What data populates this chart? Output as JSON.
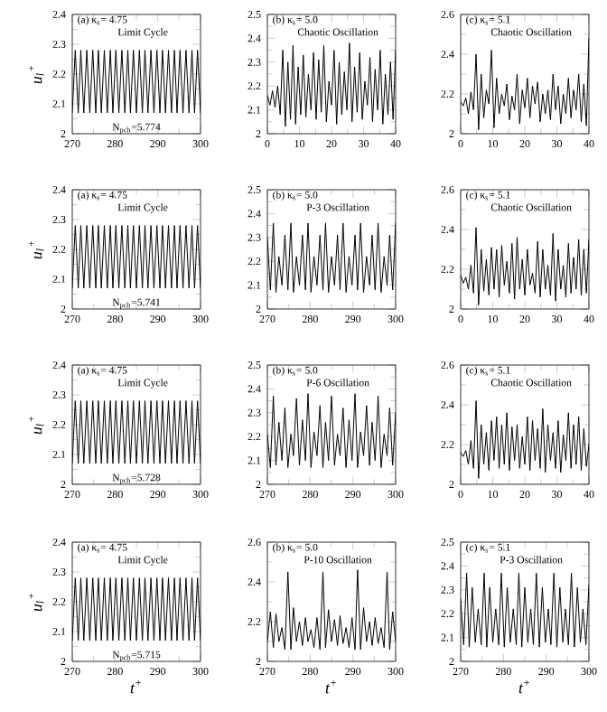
{
  "chart_data": [
    {
      "type": "line",
      "ylabel": "u$_{l}$$^{+}$",
      "annotations": [
        "(a) κ$_{s}$= 4.75",
        "Limit Cycle",
        "N$_{pch}$=5.774"
      ],
      "xlim": [
        270,
        300
      ],
      "xticks": [
        270,
        280,
        290,
        300
      ],
      "ylim": [
        2,
        2.4
      ],
      "yticks": [
        2,
        2.1,
        2.2,
        2.3,
        2.4
      ],
      "x": [
        270.0,
        270.7,
        271.4,
        272.0,
        272.7,
        273.4,
        274.1,
        274.8,
        275.5,
        276.1,
        276.8,
        277.5,
        278.2,
        278.9,
        279.5,
        280.2,
        280.9,
        281.6,
        282.3,
        283.0,
        283.6,
        284.3,
        285.0,
        285.7,
        286.4,
        287.0,
        287.7,
        288.4,
        289.1,
        289.8,
        290.5,
        291.1,
        291.8,
        292.5,
        293.2,
        293.9,
        294.5,
        295.2,
        295.9,
        296.6,
        297.3,
        298.0,
        298.6,
        299.3,
        300.0
      ],
      "series": [
        {
          "color": "#000000",
          "values": [
            2.07,
            2.28,
            2.07,
            2.28,
            2.07,
            2.28,
            2.07,
            2.28,
            2.07,
            2.28,
            2.07,
            2.28,
            2.07,
            2.28,
            2.07,
            2.28,
            2.07,
            2.28,
            2.07,
            2.28,
            2.07,
            2.28,
            2.07,
            2.28,
            2.07,
            2.28,
            2.07,
            2.28,
            2.07,
            2.28,
            2.07,
            2.28,
            2.07,
            2.28,
            2.07,
            2.28,
            2.07,
            2.28,
            2.07,
            2.28,
            2.07,
            2.28,
            2.07,
            2.28,
            2.07
          ]
        }
      ]
    },
    {
      "type": "line",
      "annotations": [
        "(b) κ$_{s}$= 5.0",
        "Chaotic Oscillation"
      ],
      "xlim": [
        0,
        40
      ],
      "xticks": [
        0,
        10,
        20,
        30,
        40
      ],
      "ylim": [
        2,
        2.5
      ],
      "yticks": [
        2,
        2.1,
        2.2,
        2.3,
        2.4,
        2.5
      ],
      "x": [
        0,
        0.8,
        1.6,
        2.4,
        3.2,
        4,
        4.8,
        5.6,
        6.4,
        7.2,
        8,
        8.8,
        9.6,
        10.4,
        11.2,
        12,
        12.8,
        13.6,
        14.4,
        15.2,
        16,
        16.8,
        17.6,
        18.4,
        19.2,
        20,
        20.8,
        21.6,
        22.4,
        23.2,
        24,
        24.8,
        25.6,
        26.4,
        27.2,
        28,
        28.8,
        29.6,
        30.4,
        31.2,
        32,
        32.8,
        33.6,
        34.4,
        35.2,
        36,
        36.8,
        37.6,
        38.4,
        39.2,
        40
      ],
      "series": [
        {
          "color": "#000000",
          "values": [
            2.16,
            2.12,
            2.18,
            2.11,
            2.2,
            2.08,
            2.35,
            2.03,
            2.3,
            2.06,
            2.37,
            2.04,
            2.28,
            2.08,
            2.33,
            2.07,
            2.25,
            2.1,
            2.34,
            2.06,
            2.31,
            2.09,
            2.37,
            2.05,
            2.22,
            2.12,
            2.35,
            2.04,
            2.3,
            2.08,
            2.26,
            2.1,
            2.38,
            2.05,
            2.28,
            2.09,
            2.34,
            2.06,
            2.22,
            2.12,
            2.32,
            2.05,
            2.27,
            2.1,
            2.35,
            2.04,
            2.25,
            2.08,
            2.3,
            2.06,
            2.35
          ]
        }
      ]
    },
    {
      "type": "line",
      "annotations": [
        "(c) κ$_{s}$= 5.1",
        "Chaotic Oscillation"
      ],
      "xlim": [
        0,
        40
      ],
      "xticks": [
        0,
        10,
        20,
        30,
        40
      ],
      "ylim": [
        2,
        2.6
      ],
      "yticks": [
        2,
        2.2,
        2.4,
        2.6
      ],
      "x": [
        0,
        0.8,
        1.6,
        2.4,
        3.2,
        4,
        4.8,
        5.6,
        6.4,
        7.2,
        8,
        8.8,
        9.6,
        10.4,
        11.2,
        12,
        12.8,
        13.6,
        14.4,
        15.2,
        16,
        16.8,
        17.6,
        18.4,
        19.2,
        20,
        20.8,
        21.6,
        22.4,
        23.2,
        24,
        24.8,
        25.6,
        26.4,
        27.2,
        28,
        28.8,
        29.6,
        30.4,
        31.2,
        32,
        32.8,
        33.6,
        34.4,
        35.2,
        36,
        36.8,
        37.6,
        38.4,
        39.2,
        40
      ],
      "series": [
        {
          "color": "#000000",
          "values": [
            2.16,
            2.14,
            2.18,
            2.1,
            2.21,
            2.12,
            2.4,
            2.02,
            2.3,
            2.08,
            2.22,
            2.15,
            2.42,
            2.03,
            2.28,
            2.1,
            2.2,
            2.14,
            2.25,
            2.07,
            2.19,
            2.12,
            2.3,
            2.05,
            2.22,
            2.13,
            2.28,
            2.08,
            2.24,
            2.15,
            2.26,
            2.06,
            2.2,
            2.1,
            2.22,
            2.07,
            2.3,
            2.12,
            2.24,
            2.05,
            2.2,
            2.1,
            2.28,
            2.08,
            2.22,
            2.12,
            2.3,
            2.06,
            2.25,
            2.04,
            2.48
          ]
        }
      ]
    },
    {
      "type": "line",
      "ylabel": "u$_{l}$$^{+}$",
      "annotations": [
        "(a) κ$_{s}$= 4.75",
        "Limit Cycle",
        "N$_{pch}$=5.741"
      ],
      "xlim": [
        270,
        300
      ],
      "xticks": [
        270,
        280,
        290,
        300
      ],
      "ylim": [
        2,
        2.4
      ],
      "yticks": [
        2,
        2.1,
        2.2,
        2.3,
        2.4
      ],
      "x": [
        270.0,
        270.7,
        271.4,
        272.0,
        272.7,
        273.4,
        274.1,
        274.8,
        275.5,
        276.1,
        276.8,
        277.5,
        278.2,
        278.9,
        279.5,
        280.2,
        280.9,
        281.6,
        282.3,
        283.0,
        283.6,
        284.3,
        285.0,
        285.7,
        286.4,
        287.0,
        287.7,
        288.4,
        289.1,
        289.8,
        290.5,
        291.1,
        291.8,
        292.5,
        293.2,
        293.9,
        294.5,
        295.2,
        295.9,
        296.6,
        297.3,
        298.0,
        298.6,
        299.3,
        300.0
      ],
      "series": [
        {
          "color": "#000000",
          "values": [
            2.07,
            2.28,
            2.07,
            2.28,
            2.07,
            2.28,
            2.07,
            2.28,
            2.07,
            2.28,
            2.07,
            2.28,
            2.07,
            2.28,
            2.07,
            2.28,
            2.07,
            2.28,
            2.07,
            2.28,
            2.07,
            2.28,
            2.07,
            2.28,
            2.07,
            2.28,
            2.07,
            2.28,
            2.07,
            2.28,
            2.07,
            2.28,
            2.07,
            2.28,
            2.07,
            2.28,
            2.07,
            2.28,
            2.07,
            2.28,
            2.07,
            2.28,
            2.07,
            2.28,
            2.07
          ]
        }
      ]
    },
    {
      "type": "line",
      "annotations": [
        "(b) κ$_{s}$= 5.0",
        "P-3 Oscillation"
      ],
      "xlim": [
        270,
        300
      ],
      "xticks": [
        270,
        280,
        290,
        300
      ],
      "ylim": [
        2,
        2.5
      ],
      "yticks": [
        2,
        2.1,
        2.2,
        2.3,
        2.4,
        2.5
      ],
      "x": [
        270.0,
        270.7,
        271.4,
        272.0,
        272.7,
        273.4,
        274.1,
        274.8,
        275.5,
        276.1,
        276.8,
        277.5,
        278.2,
        278.9,
        279.5,
        280.2,
        280.9,
        281.6,
        282.3,
        283.0,
        283.6,
        284.3,
        285.0,
        285.7,
        286.4,
        287.0,
        287.7,
        288.4,
        289.1,
        289.8,
        290.5,
        291.1,
        291.8,
        292.5,
        293.2,
        293.9,
        294.5,
        295.2,
        295.9,
        296.6,
        297.3,
        298.0,
        298.6,
        299.3,
        300.0
      ],
      "series": [
        {
          "color": "#000000",
          "values": [
            2.3,
            2.08,
            2.36,
            2.07,
            2.22,
            2.1,
            2.31,
            2.08,
            2.36,
            2.07,
            2.22,
            2.1,
            2.31,
            2.08,
            2.36,
            2.07,
            2.22,
            2.1,
            2.31,
            2.08,
            2.36,
            2.07,
            2.22,
            2.1,
            2.31,
            2.08,
            2.36,
            2.07,
            2.22,
            2.1,
            2.31,
            2.08,
            2.36,
            2.07,
            2.22,
            2.1,
            2.31,
            2.08,
            2.36,
            2.07,
            2.22,
            2.1,
            2.31,
            2.08,
            2.36
          ]
        }
      ]
    },
    {
      "type": "line",
      "annotations": [
        "(c) κ$_{s}$= 5.1",
        "Chaotic Oscillation"
      ],
      "xlim": [
        0,
        40
      ],
      "xticks": [
        0,
        10,
        20,
        30,
        40
      ],
      "ylim": [
        2,
        2.6
      ],
      "yticks": [
        2,
        2.2,
        2.4,
        2.6
      ],
      "x": [
        0,
        0.8,
        1.6,
        2.4,
        3.2,
        4,
        4.8,
        5.6,
        6.4,
        7.2,
        8,
        8.8,
        9.6,
        10.4,
        11.2,
        12,
        12.8,
        13.6,
        14.4,
        15.2,
        16,
        16.8,
        17.6,
        18.4,
        19.2,
        20,
        20.8,
        21.6,
        22.4,
        23.2,
        24,
        24.8,
        25.6,
        26.4,
        27.2,
        28,
        28.8,
        29.6,
        30.4,
        31.2,
        32,
        32.8,
        33.6,
        34.4,
        35.2,
        36,
        36.8,
        37.6,
        38.4,
        39.2,
        40
      ],
      "series": [
        {
          "color": "#000000",
          "values": [
            2.17,
            2.13,
            2.16,
            2.1,
            2.22,
            2.08,
            2.41,
            2.02,
            2.3,
            2.09,
            2.25,
            2.07,
            2.31,
            2.1,
            2.3,
            2.06,
            2.32,
            2.12,
            2.24,
            2.08,
            2.33,
            2.05,
            2.36,
            2.1,
            2.25,
            2.07,
            2.3,
            2.12,
            2.18,
            2.08,
            2.34,
            2.06,
            2.3,
            2.1,
            2.22,
            2.07,
            2.38,
            2.04,
            2.3,
            2.1,
            2.22,
            2.06,
            2.33,
            2.08,
            2.26,
            2.1,
            2.35,
            2.07,
            2.3,
            2.08,
            2.35
          ]
        }
      ]
    },
    {
      "type": "line",
      "ylabel": "u$_{l}$$^{+}$",
      "annotations": [
        "(a) κ$_{s}$= 4.75",
        "Limit Cycle",
        "N$_{pch}$=5.728"
      ],
      "xlim": [
        270,
        300
      ],
      "xticks": [
        270,
        280,
        290,
        300
      ],
      "ylim": [
        2,
        2.4
      ],
      "yticks": [
        2,
        2.1,
        2.2,
        2.3,
        2.4
      ],
      "x": [
        270.0,
        270.7,
        271.4,
        272.0,
        272.7,
        273.4,
        274.1,
        274.8,
        275.5,
        276.1,
        276.8,
        277.5,
        278.2,
        278.9,
        279.5,
        280.2,
        280.9,
        281.6,
        282.3,
        283.0,
        283.6,
        284.3,
        285.0,
        285.7,
        286.4,
        287.0,
        287.7,
        288.4,
        289.1,
        289.8,
        290.5,
        291.1,
        291.8,
        292.5,
        293.2,
        293.9,
        294.5,
        295.2,
        295.9,
        296.6,
        297.3,
        298.0,
        298.6,
        299.3,
        300.0
      ],
      "series": [
        {
          "color": "#000000",
          "values": [
            2.07,
            2.28,
            2.07,
            2.28,
            2.07,
            2.28,
            2.07,
            2.28,
            2.07,
            2.28,
            2.07,
            2.28,
            2.07,
            2.28,
            2.07,
            2.28,
            2.07,
            2.28,
            2.07,
            2.28,
            2.07,
            2.28,
            2.07,
            2.28,
            2.07,
            2.28,
            2.07,
            2.28,
            2.07,
            2.28,
            2.07,
            2.28,
            2.07,
            2.28,
            2.07,
            2.28,
            2.07,
            2.28,
            2.07,
            2.28,
            2.07,
            2.28,
            2.07,
            2.28,
            2.07
          ]
        }
      ]
    },
    {
      "type": "line",
      "annotations": [
        "(b) κ$_{s}$= 5.0",
        "P-6 Oscillation"
      ],
      "xlim": [
        270,
        300
      ],
      "xticks": [
        270,
        280,
        290,
        300
      ],
      "ylim": [
        2,
        2.5
      ],
      "yticks": [
        2,
        2.1,
        2.2,
        2.3,
        2.4,
        2.5
      ],
      "x": [
        270.0,
        270.7,
        271.4,
        272.0,
        272.7,
        273.4,
        274.1,
        274.8,
        275.5,
        276.1,
        276.8,
        277.5,
        278.2,
        278.9,
        279.5,
        280.2,
        280.9,
        281.6,
        282.3,
        283.0,
        283.6,
        284.3,
        285.0,
        285.7,
        286.4,
        287.0,
        287.7,
        288.4,
        289.1,
        289.8,
        290.5,
        291.1,
        291.8,
        292.5,
        293.2,
        293.9,
        294.5,
        295.2,
        295.9,
        296.6,
        297.3,
        298.0,
        298.6,
        299.3,
        300.0
      ],
      "series": [
        {
          "color": "#000000",
          "values": [
            2.21,
            2.07,
            2.37,
            2.08,
            2.26,
            2.1,
            2.32,
            2.07,
            2.21,
            2.12,
            2.36,
            2.08,
            2.27,
            2.1,
            2.38,
            2.07,
            2.22,
            2.12,
            2.33,
            2.07,
            2.26,
            2.1,
            2.37,
            2.08,
            2.21,
            2.12,
            2.32,
            2.07,
            2.27,
            2.1,
            2.38,
            2.07,
            2.22,
            2.12,
            2.33,
            2.08,
            2.26,
            2.1,
            2.37,
            2.07,
            2.21,
            2.12,
            2.32,
            2.08,
            2.3
          ]
        }
      ]
    },
    {
      "type": "line",
      "annotations": [
        "(c) κ$_{s}$= 5.1",
        "Chaotic Oscillation"
      ],
      "xlim": [
        0,
        40
      ],
      "xticks": [
        0,
        10,
        20,
        30,
        40
      ],
      "ylim": [
        2,
        2.6
      ],
      "yticks": [
        2,
        2.2,
        2.4,
        2.6
      ],
      "x": [
        0,
        0.8,
        1.6,
        2.4,
        3.2,
        4,
        4.8,
        5.6,
        6.4,
        7.2,
        8,
        8.8,
        9.6,
        10.4,
        11.2,
        12,
        12.8,
        13.6,
        14.4,
        15.2,
        16,
        16.8,
        17.6,
        18.4,
        19.2,
        20,
        20.8,
        21.6,
        22.4,
        23.2,
        24,
        24.8,
        25.6,
        26.4,
        27.2,
        28,
        28.8,
        29.6,
        30.4,
        31.2,
        32,
        32.8,
        33.6,
        34.4,
        35.2,
        36,
        36.8,
        37.6,
        38.4,
        39.2,
        40
      ],
      "series": [
        {
          "color": "#000000",
          "values": [
            2.16,
            2.14,
            2.17,
            2.1,
            2.22,
            2.08,
            2.42,
            2.03,
            2.3,
            2.1,
            2.26,
            2.07,
            2.32,
            2.12,
            2.34,
            2.08,
            2.3,
            2.1,
            2.36,
            2.07,
            2.29,
            2.12,
            2.3,
            2.08,
            2.24,
            2.1,
            2.34,
            2.07,
            2.32,
            2.12,
            2.28,
            2.08,
            2.38,
            2.06,
            2.3,
            2.12,
            2.26,
            2.08,
            2.32,
            2.06,
            2.25,
            2.12,
            2.36,
            2.08,
            2.3,
            2.1,
            2.34,
            2.07,
            2.28,
            2.09,
            2.2
          ]
        }
      ]
    },
    {
      "type": "line",
      "ylabel": "u$_{l}$$^{+}$",
      "xlabel": "t$^{+}$",
      "annotations": [
        "(a) κ$_{s}$= 4.75",
        "Limit Cycle",
        "N$_{pch}$=5.715"
      ],
      "xlim": [
        270,
        300
      ],
      "xticks": [
        270,
        280,
        290,
        300
      ],
      "ylim": [
        2,
        2.4
      ],
      "yticks": [
        2,
        2.1,
        2.2,
        2.3,
        2.4
      ],
      "x": [
        270.0,
        270.7,
        271.4,
        272.0,
        272.7,
        273.4,
        274.1,
        274.8,
        275.5,
        276.1,
        276.8,
        277.5,
        278.2,
        278.9,
        279.5,
        280.2,
        280.9,
        281.6,
        282.3,
        283.0,
        283.6,
        284.3,
        285.0,
        285.7,
        286.4,
        287.0,
        287.7,
        288.4,
        289.1,
        289.8,
        290.5,
        291.1,
        291.8,
        292.5,
        293.2,
        293.9,
        294.5,
        295.2,
        295.9,
        296.6,
        297.3,
        298.0,
        298.6,
        299.3,
        300.0
      ],
      "series": [
        {
          "color": "#000000",
          "values": [
            2.07,
            2.28,
            2.07,
            2.28,
            2.07,
            2.28,
            2.07,
            2.28,
            2.07,
            2.28,
            2.07,
            2.28,
            2.07,
            2.28,
            2.07,
            2.28,
            2.07,
            2.28,
            2.07,
            2.28,
            2.07,
            2.28,
            2.07,
            2.28,
            2.07,
            2.28,
            2.07,
            2.28,
            2.07,
            2.28,
            2.07,
            2.28,
            2.07,
            2.28,
            2.07,
            2.28,
            2.07,
            2.28,
            2.07,
            2.28,
            2.07,
            2.28,
            2.07,
            2.28,
            2.07
          ]
        }
      ]
    },
    {
      "type": "line",
      "xlabel": "t$^{+}$",
      "annotations": [
        "(b) κ$_{s}$= 5.0",
        "P-10 Oscillation"
      ],
      "xlim": [
        270,
        300
      ],
      "xticks": [
        270,
        280,
        290,
        300
      ],
      "ylim": [
        2,
        2.6
      ],
      "yticks": [
        2,
        2.2,
        2.4,
        2.6
      ],
      "x": [
        270.0,
        270.7,
        271.4,
        272.0,
        272.7,
        273.4,
        274.1,
        274.8,
        275.5,
        276.1,
        276.8,
        277.5,
        278.2,
        278.9,
        279.5,
        280.2,
        280.9,
        281.6,
        282.3,
        283.0,
        283.6,
        284.3,
        285.0,
        285.7,
        286.4,
        287.0,
        287.7,
        288.4,
        289.1,
        289.8,
        290.5,
        291.1,
        291.8,
        292.5,
        293.2,
        293.9,
        294.5,
        295.2,
        295.9,
        296.6,
        297.3,
        298.0,
        298.6,
        299.3,
        300.0
      ],
      "series": [
        {
          "color": "#000000",
          "values": [
            2.1,
            2.25,
            2.07,
            2.24,
            2.1,
            2.17,
            2.06,
            2.45,
            2.06,
            2.27,
            2.1,
            2.2,
            2.08,
            2.22,
            2.1,
            2.16,
            2.07,
            2.22,
            2.06,
            2.45,
            2.07,
            2.26,
            2.1,
            2.21,
            2.08,
            2.23,
            2.09,
            2.17,
            2.07,
            2.22,
            2.06,
            2.46,
            2.06,
            2.27,
            2.1,
            2.2,
            2.08,
            2.22,
            2.09,
            2.17,
            2.07,
            2.45,
            2.06,
            2.25,
            2.1
          ]
        }
      ]
    },
    {
      "type": "line",
      "xlabel": "t$^{+}$",
      "annotations": [
        "(c) κ$_{s}$= 5.1",
        "P-3 Oscillation"
      ],
      "xlim": [
        270,
        300
      ],
      "xticks": [
        270,
        280,
        290,
        300
      ],
      "ylim": [
        2,
        2.5
      ],
      "yticks": [
        2,
        2.1,
        2.2,
        2.3,
        2.4,
        2.5
      ],
      "x": [
        270.0,
        270.7,
        271.4,
        272.0,
        272.7,
        273.4,
        274.1,
        274.8,
        275.5,
        276.1,
        276.8,
        277.5,
        278.2,
        278.9,
        279.5,
        280.2,
        280.9,
        281.6,
        282.3,
        283.0,
        283.6,
        284.3,
        285.0,
        285.7,
        286.4,
        287.0,
        287.7,
        288.4,
        289.1,
        289.8,
        290.5,
        291.1,
        291.8,
        292.5,
        293.2,
        293.9,
        294.5,
        295.2,
        295.9,
        296.6,
        297.3,
        298.0,
        298.6,
        299.3,
        300.0
      ],
      "series": [
        {
          "color": "#000000",
          "values": [
            2.26,
            2.07,
            2.37,
            2.06,
            2.31,
            2.08,
            2.22,
            2.07,
            2.37,
            2.06,
            2.31,
            2.08,
            2.22,
            2.07,
            2.37,
            2.06,
            2.31,
            2.08,
            2.22,
            2.07,
            2.37,
            2.06,
            2.31,
            2.08,
            2.22,
            2.07,
            2.37,
            2.06,
            2.31,
            2.08,
            2.22,
            2.07,
            2.37,
            2.06,
            2.31,
            2.08,
            2.22,
            2.07,
            2.37,
            2.06,
            2.31,
            2.08,
            2.22,
            2.07,
            2.32
          ]
        }
      ]
    }
  ]
}
